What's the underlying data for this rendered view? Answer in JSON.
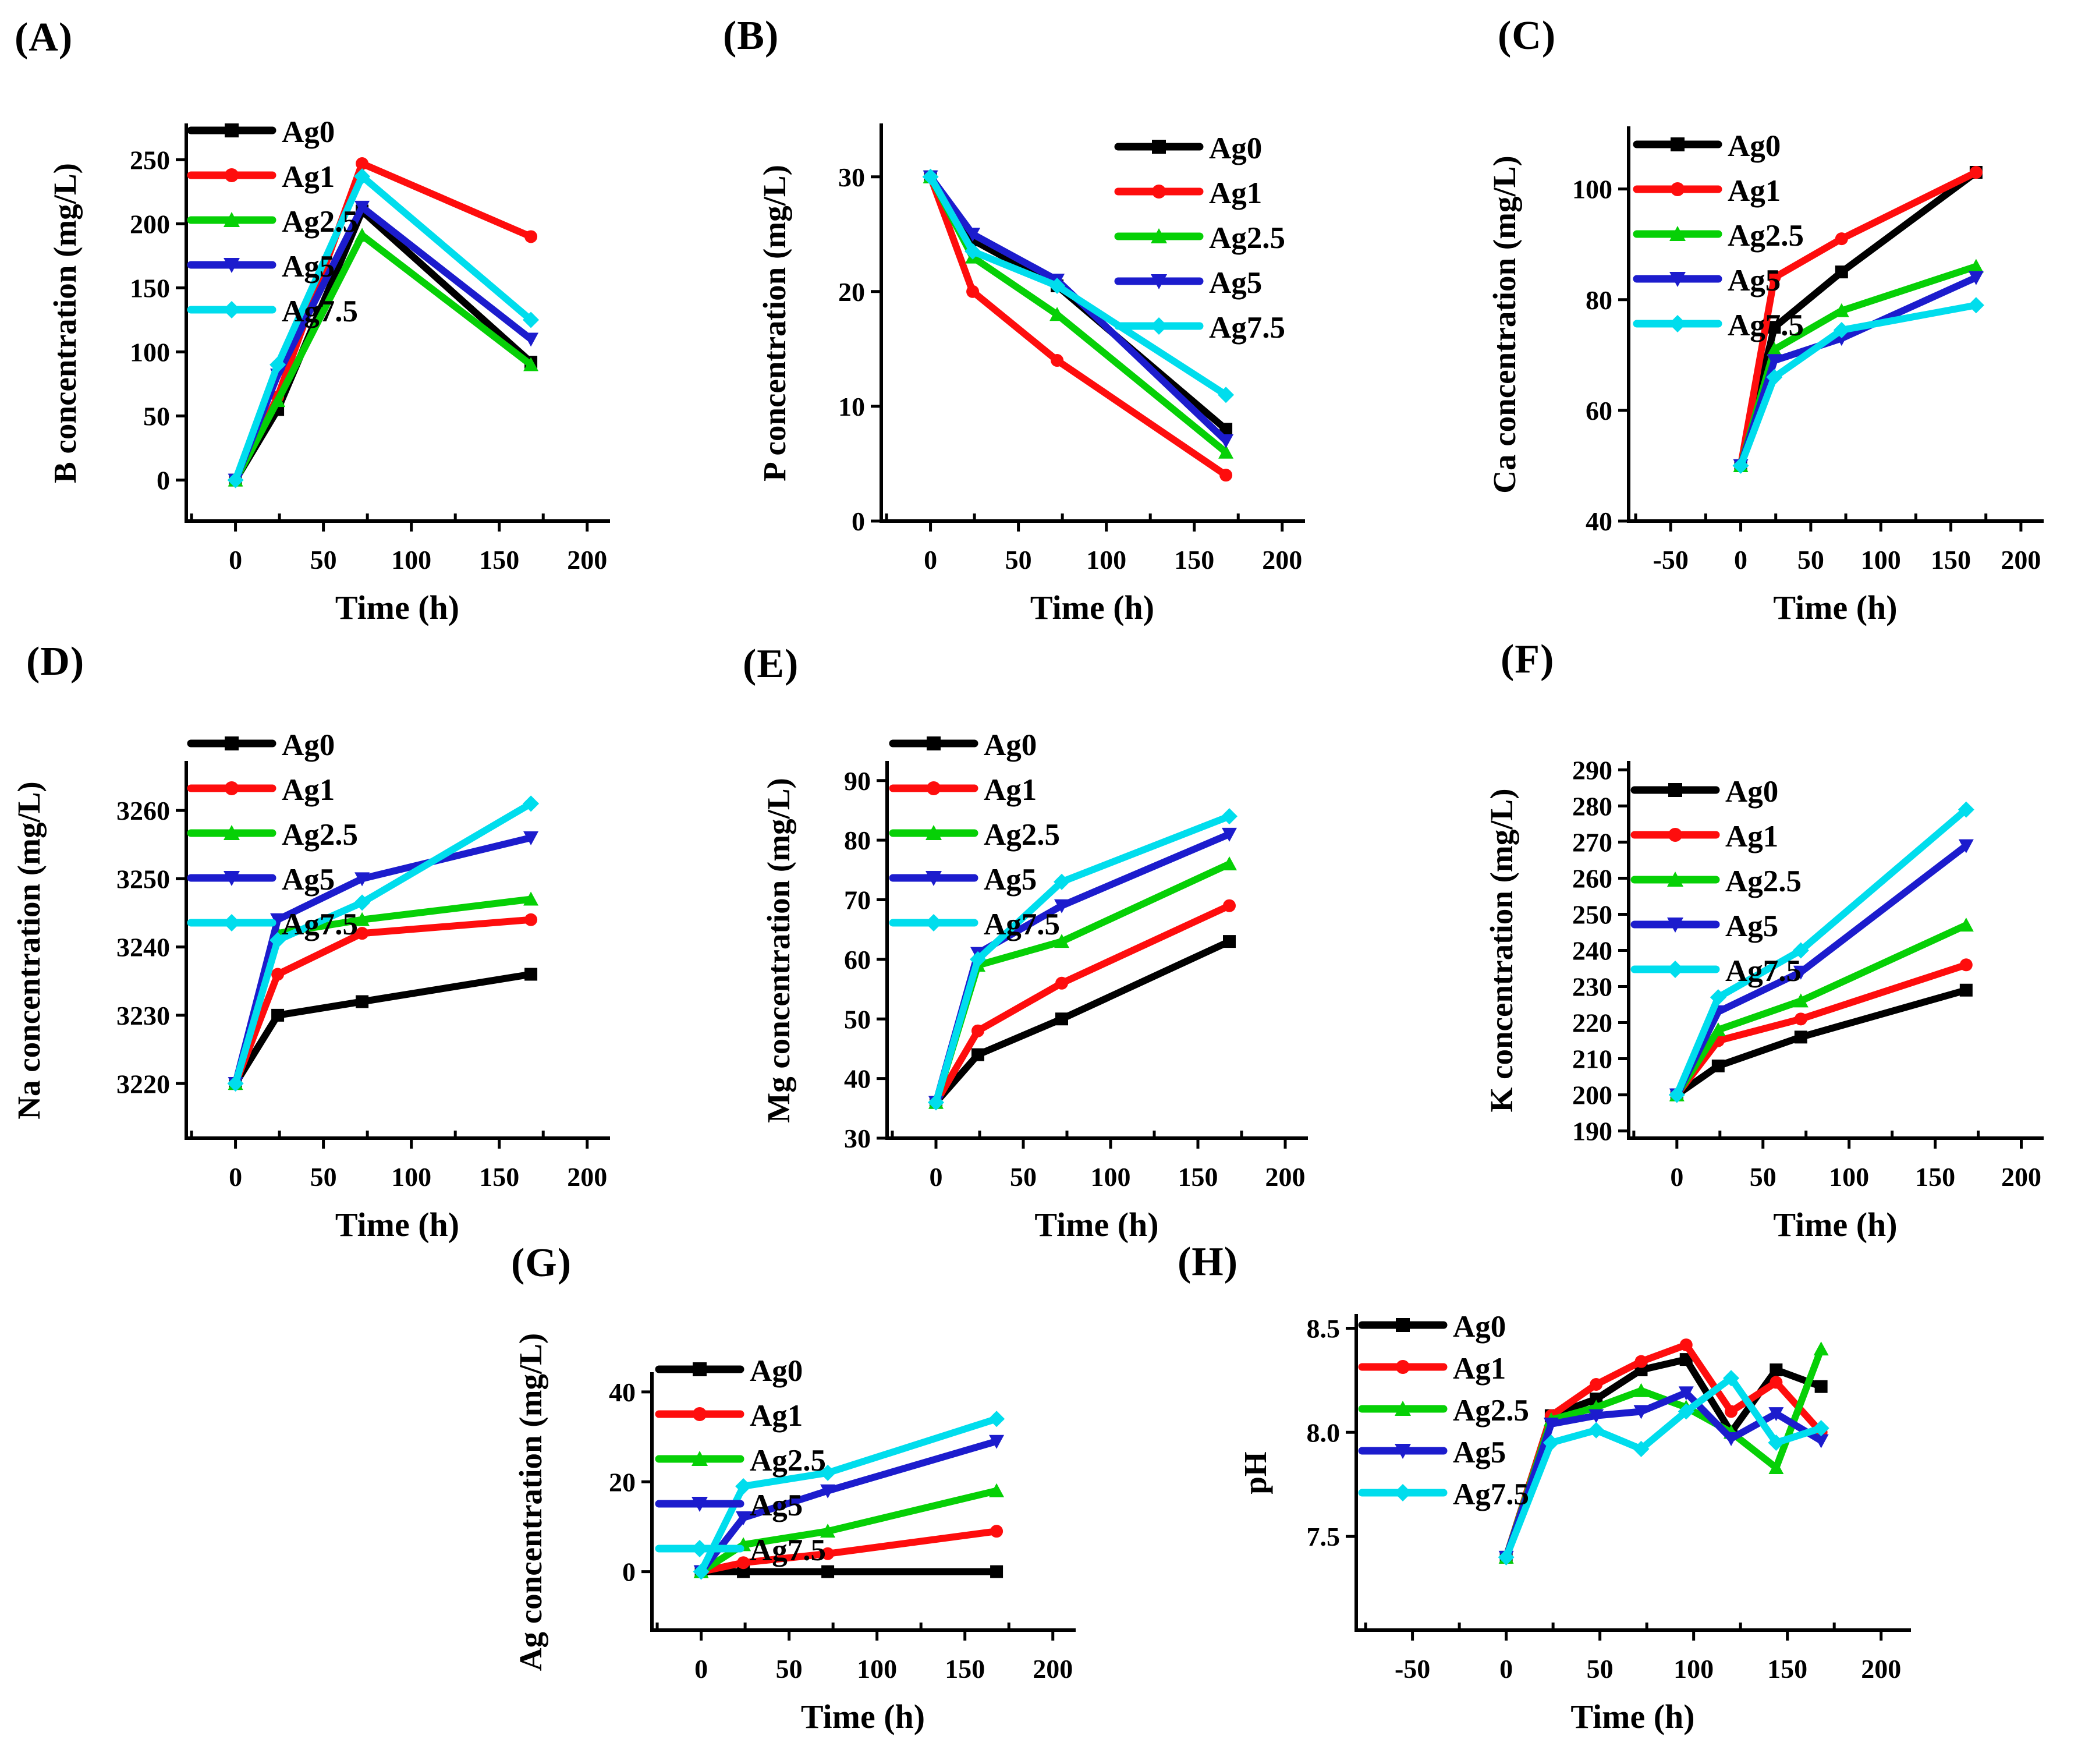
{
  "figure": {
    "background": "#ffffff",
    "series_legend": [
      "Ag0",
      "Ag1",
      "Ag2.5",
      "Ag5",
      "Ag7.5"
    ],
    "accent_colors": {
      "ag0": "#000000",
      "ag1": "#fe0d0d",
      "ag2_5": "#06d006",
      "ag5": "#1c1ccd",
      "ag7_5": "#00dded"
    }
  },
  "chart_data": [
    {
      "id": "A",
      "type": "line",
      "panel_label": "(A)",
      "xlabel": "Time (h)",
      "ylabel": "B concentration (mg/L)",
      "x": [
        0,
        24,
        72,
        168
      ],
      "xlim": [
        -28,
        212
      ],
      "ylim": [
        -32,
        277
      ],
      "xtick_vals": [
        0,
        50,
        100,
        150,
        200
      ],
      "xtick_labels": [
        "0",
        "50",
        "100",
        "150",
        "200"
      ],
      "ytick_vals": [
        0,
        50,
        100,
        150,
        200,
        250
      ],
      "ytick_labels": [
        "0",
        "50",
        "100",
        "150",
        "200",
        "250"
      ],
      "legend_position": "top-left",
      "grid": false,
      "series": [
        {
          "name": "Ag0",
          "color": "#000000",
          "marker": "square",
          "values": [
            0,
            55,
            210,
            92
          ]
        },
        {
          "name": "Ag1",
          "color": "#fe0d0d",
          "marker": "circle",
          "values": [
            0,
            65,
            247,
            190
          ]
        },
        {
          "name": "Ag2.5",
          "color": "#06d006",
          "marker": "triangle-up",
          "values": [
            0,
            62,
            191,
            90
          ]
        },
        {
          "name": "Ag5",
          "color": "#1c1ccd",
          "marker": "triangle-down",
          "values": [
            0,
            82,
            213,
            110
          ]
        },
        {
          "name": "Ag7.5",
          "color": "#00dded",
          "marker": "diamond",
          "values": [
            0,
            90,
            237,
            125
          ]
        }
      ]
    },
    {
      "id": "B",
      "type": "line",
      "panel_label": "(B)",
      "xlabel": "Time (h)",
      "ylabel": "P concentration (mg/L)",
      "x": [
        0,
        24,
        72,
        168
      ],
      "xlim": [
        -28,
        212
      ],
      "ylim": [
        0,
        34.5
      ],
      "xtick_vals": [
        0,
        50,
        100,
        150,
        200
      ],
      "xtick_labels": [
        "0",
        "50",
        "100",
        "150",
        "200"
      ],
      "ytick_vals": [
        0,
        10,
        20,
        30
      ],
      "ytick_labels": [
        "0",
        "10",
        "20",
        "30"
      ],
      "legend_position": "top-right",
      "grid": false,
      "series": [
        {
          "name": "Ag0",
          "color": "#000000",
          "marker": "square",
          "values": [
            30,
            24.5,
            20.5,
            8
          ]
        },
        {
          "name": "Ag1",
          "color": "#fe0d0d",
          "marker": "circle",
          "values": [
            30,
            20,
            14,
            4
          ]
        },
        {
          "name": "Ag2.5",
          "color": "#06d006",
          "marker": "triangle-up",
          "values": [
            30,
            23,
            18,
            6
          ]
        },
        {
          "name": "Ag5",
          "color": "#1c1ccd",
          "marker": "triangle-down",
          "values": [
            30,
            25,
            21,
            7
          ]
        },
        {
          "name": "Ag7.5",
          "color": "#00dded",
          "marker": "diamond",
          "values": [
            30,
            23.5,
            20.5,
            11
          ]
        }
      ]
    },
    {
      "id": "C",
      "type": "line",
      "panel_label": "(C)",
      "xlabel": "Time (h)",
      "ylabel": "Ca concentration (mg/L)",
      "x": [
        0,
        24,
        72,
        168
      ],
      "xlim": [
        -80,
        215
      ],
      "ylim": [
        40,
        111
      ],
      "xtick_vals": [
        -50,
        0,
        50,
        100,
        150,
        200
      ],
      "xtick_labels": [
        "-50",
        "0",
        "50",
        "100",
        "150",
        "200"
      ],
      "ytick_vals": [
        40,
        60,
        80,
        100
      ],
      "ytick_labels": [
        "40",
        "60",
        "80",
        "100"
      ],
      "legend_position": "top-left",
      "grid": false,
      "series": [
        {
          "name": "Ag0",
          "color": "#000000",
          "marker": "square",
          "values": [
            50,
            75,
            85,
            103
          ]
        },
        {
          "name": "Ag1",
          "color": "#fe0d0d",
          "marker": "circle",
          "values": [
            50,
            84,
            91,
            103
          ]
        },
        {
          "name": "Ag2.5",
          "color": "#06d006",
          "marker": "triangle-up",
          "values": [
            50,
            71,
            78,
            86
          ]
        },
        {
          "name": "Ag5",
          "color": "#1c1ccd",
          "marker": "triangle-down",
          "values": [
            50,
            69,
            73,
            84
          ]
        },
        {
          "name": "Ag7.5",
          "color": "#00dded",
          "marker": "diamond",
          "values": [
            50,
            66,
            74.5,
            79
          ]
        }
      ]
    },
    {
      "id": "D",
      "type": "line",
      "panel_label": "(D)",
      "xlabel": "Time (h)",
      "ylabel": "Na concentration (mg/L)",
      "x": [
        0,
        24,
        72,
        168
      ],
      "xlim": [
        -28,
        212
      ],
      "ylim": [
        3212,
        3267
      ],
      "xtick_vals": [
        0,
        50,
        100,
        150,
        200
      ],
      "xtick_labels": [
        "0",
        "50",
        "100",
        "150",
        "200"
      ],
      "ytick_vals": [
        3220,
        3230,
        3240,
        3250,
        3260
      ],
      "ytick_labels": [
        "3220",
        "3230",
        "3240",
        "3250",
        "3260"
      ],
      "legend_position": "top-left",
      "grid": false,
      "series": [
        {
          "name": "Ag0",
          "color": "#000000",
          "marker": "square",
          "values": [
            3220,
            3230,
            3232,
            3236
          ]
        },
        {
          "name": "Ag1",
          "color": "#fe0d0d",
          "marker": "circle",
          "values": [
            3220,
            3236,
            3242,
            3244
          ]
        },
        {
          "name": "Ag2.5",
          "color": "#06d006",
          "marker": "triangle-up",
          "values": [
            3220,
            3242,
            3244,
            3247
          ]
        },
        {
          "name": "Ag5",
          "color": "#1c1ccd",
          "marker": "triangle-down",
          "values": [
            3220,
            3244,
            3250,
            3256
          ]
        },
        {
          "name": "Ag7.5",
          "color": "#00dded",
          "marker": "diamond",
          "values": [
            3220,
            3241,
            3246.5,
            3261
          ]
        }
      ]
    },
    {
      "id": "E",
      "type": "line",
      "panel_label": "(E)",
      "xlabel": "Time (h)",
      "ylabel": "Mg concentration (mg/L)",
      "x": [
        0,
        24,
        72,
        168
      ],
      "xlim": [
        -28,
        212
      ],
      "ylim": [
        30,
        93
      ],
      "xtick_vals": [
        0,
        50,
        100,
        150,
        200
      ],
      "xtick_labels": [
        "0",
        "50",
        "100",
        "150",
        "200"
      ],
      "ytick_vals": [
        30,
        40,
        50,
        60,
        70,
        80,
        90
      ],
      "ytick_labels": [
        "30",
        "40",
        "50",
        "60",
        "70",
        "80",
        "90"
      ],
      "legend_position": "top-left",
      "grid": false,
      "series": [
        {
          "name": "Ag0",
          "color": "#000000",
          "marker": "square",
          "values": [
            36,
            44,
            50,
            63
          ]
        },
        {
          "name": "Ag1",
          "color": "#fe0d0d",
          "marker": "circle",
          "values": [
            36,
            48,
            56,
            69
          ]
        },
        {
          "name": "Ag2.5",
          "color": "#06d006",
          "marker": "triangle-up",
          "values": [
            36,
            59,
            63,
            76
          ]
        },
        {
          "name": "Ag5",
          "color": "#1c1ccd",
          "marker": "triangle-down",
          "values": [
            36,
            61,
            69,
            81
          ]
        },
        {
          "name": "Ag7.5",
          "color": "#00dded",
          "marker": "diamond",
          "values": [
            36,
            60,
            73,
            84
          ]
        }
      ]
    },
    {
      "id": "F",
      "type": "line",
      "panel_label": "(F)",
      "xlabel": "Time (h)",
      "ylabel": "K concentration (mg/L)",
      "x": [
        0,
        24,
        72,
        168
      ],
      "xlim": [
        -28,
        212
      ],
      "ylim": [
        188,
        292
      ],
      "xtick_vals": [
        0,
        50,
        100,
        150,
        200
      ],
      "xtick_labels": [
        "0",
        "50",
        "100",
        "150",
        "200"
      ],
      "ytick_vals": [
        190,
        200,
        210,
        220,
        230,
        240,
        250,
        260,
        270,
        280,
        290
      ],
      "ytick_labels": [
        "190",
        "200",
        "210",
        "220",
        "230",
        "240",
        "250",
        "260",
        "270",
        "280",
        "290"
      ],
      "legend_position": "top-left",
      "grid": false,
      "series": [
        {
          "name": "Ag0",
          "color": "#000000",
          "marker": "square",
          "values": [
            200,
            208,
            216,
            229
          ]
        },
        {
          "name": "Ag1",
          "color": "#fe0d0d",
          "marker": "circle",
          "values": [
            200,
            215,
            221,
            236
          ]
        },
        {
          "name": "Ag2.5",
          "color": "#06d006",
          "marker": "triangle-up",
          "values": [
            200,
            218,
            226,
            247
          ]
        },
        {
          "name": "Ag5",
          "color": "#1c1ccd",
          "marker": "triangle-down",
          "values": [
            200,
            223,
            234,
            269
          ]
        },
        {
          "name": "Ag7.5",
          "color": "#00dded",
          "marker": "diamond",
          "values": [
            200,
            227,
            240,
            279
          ]
        }
      ]
    },
    {
      "id": "G",
      "type": "line",
      "panel_label": "(G)",
      "xlabel": "Time (h)",
      "ylabel": "Ag concentration (mg/L)",
      "x": [
        0,
        24,
        72,
        168
      ],
      "xlim": [
        -28,
        212
      ],
      "ylim": [
        -13,
        44
      ],
      "xtick_vals": [
        0,
        50,
        100,
        150,
        200
      ],
      "xtick_labels": [
        "0",
        "50",
        "100",
        "150",
        "200"
      ],
      "ytick_vals": [
        0,
        20,
        40
      ],
      "ytick_labels": [
        "0",
        "20",
        "40"
      ],
      "legend_position": "top-left",
      "grid": false,
      "series": [
        {
          "name": "Ag0",
          "color": "#000000",
          "marker": "square",
          "values": [
            0,
            0,
            0,
            0
          ]
        },
        {
          "name": "Ag1",
          "color": "#fe0d0d",
          "marker": "circle",
          "values": [
            0,
            2,
            4,
            9
          ]
        },
        {
          "name": "Ag2.5",
          "color": "#06d006",
          "marker": "triangle-up",
          "values": [
            0,
            6,
            9,
            18
          ]
        },
        {
          "name": "Ag5",
          "color": "#1c1ccd",
          "marker": "triangle-down",
          "values": [
            0,
            12,
            18,
            29
          ]
        },
        {
          "name": "Ag7.5",
          "color": "#00dded",
          "marker": "diamond",
          "values": [
            0,
            19,
            22,
            34
          ]
        }
      ]
    },
    {
      "id": "H",
      "type": "line",
      "panel_label": "(H)",
      "xlabel": "Time (h)",
      "ylabel": "pH",
      "x": [
        0,
        24,
        48,
        72,
        96,
        120,
        144,
        168
      ],
      "xlim": [
        -80,
        215
      ],
      "ylim": [
        7.05,
        8.56
      ],
      "xtick_vals": [
        -50,
        0,
        50,
        100,
        150,
        200
      ],
      "xtick_labels": [
        "-50",
        "0",
        "50",
        "100",
        "150",
        "200"
      ],
      "ytick_vals": [
        7.5,
        8.0,
        8.5
      ],
      "ytick_labels": [
        "7.5",
        "8.0",
        "8.5"
      ],
      "legend_position": "top-left",
      "grid": false,
      "series": [
        {
          "name": "Ag0",
          "color": "#000000",
          "marker": "square",
          "values": [
            7.4,
            8.08,
            8.16,
            8.3,
            8.35,
            8.0,
            8.3,
            8.22
          ]
        },
        {
          "name": "Ag1",
          "color": "#fe0d0d",
          "marker": "circle",
          "values": [
            7.4,
            8.08,
            8.23,
            8.34,
            8.42,
            8.1,
            8.24,
            8.0
          ]
        },
        {
          "name": "Ag2.5",
          "color": "#06d006",
          "marker": "triangle-up",
          "values": [
            7.4,
            8.06,
            8.12,
            8.2,
            8.12,
            8.0,
            7.83,
            8.4
          ]
        },
        {
          "name": "Ag5",
          "color": "#1c1ccd",
          "marker": "triangle-down",
          "values": [
            7.4,
            8.04,
            8.08,
            8.1,
            8.19,
            7.97,
            8.09,
            7.96
          ]
        },
        {
          "name": "Ag7.5",
          "color": "#00dded",
          "marker": "diamond",
          "values": [
            7.4,
            7.95,
            8.01,
            7.92,
            8.1,
            8.26,
            7.95,
            8.02
          ]
        }
      ]
    }
  ]
}
